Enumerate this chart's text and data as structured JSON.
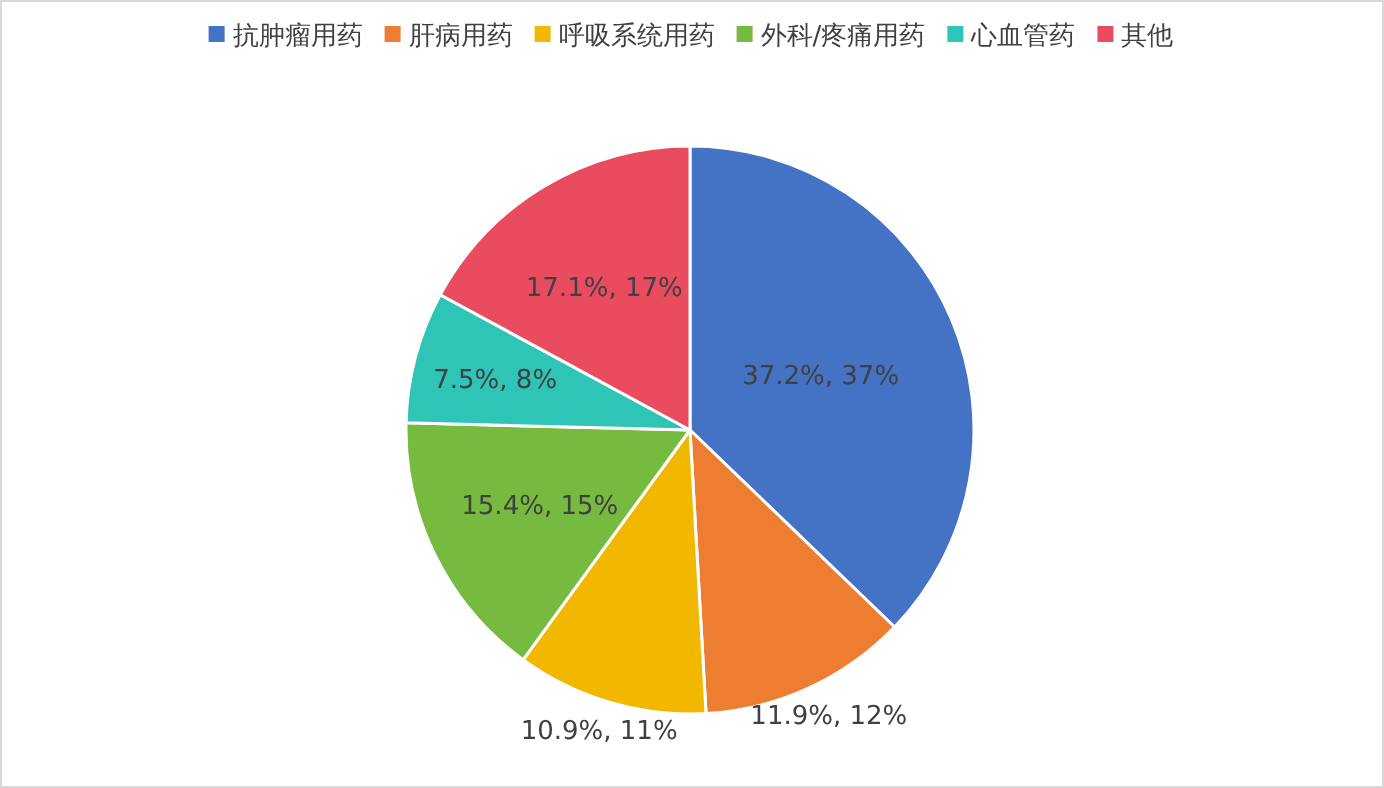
{
  "chart_data": {
    "type": "pie",
    "categories": [
      "抗肿瘤用药",
      "肝病用药",
      "呼吸系统用药",
      "外科/疼痛用药",
      "心血管药",
      "其他"
    ],
    "values": [
      37.2,
      11.9,
      10.9,
      15.4,
      7.5,
      17.1
    ],
    "colors": [
      "#4472c4",
      "#ed7d31",
      "#f2b800",
      "#76bb40",
      "#2ec4b6",
      "#e84c5e"
    ],
    "value_labels": [
      "37.2%, 37%",
      "11.9%, 12%",
      "10.9%, 11%",
      "15.4%, 15%",
      "7.5%, 8%",
      "17.1%, 17%"
    ],
    "legend": "top"
  }
}
